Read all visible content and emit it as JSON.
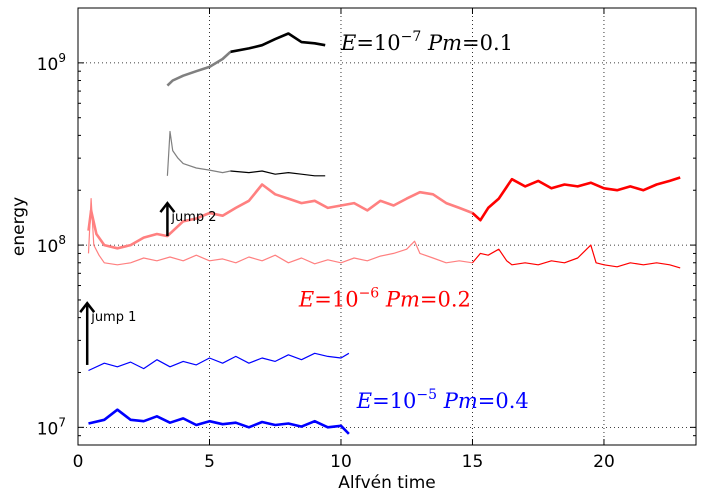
{
  "chart_data": {
    "type": "line",
    "title": "",
    "xlabel": "Alfvén time",
    "ylabel": "energy",
    "xlim": [
      0,
      23.5
    ],
    "ylim": [
      8000000,
      2000000000
    ],
    "yscale": "log",
    "grid": "dotted, at major ticks",
    "x_ticks": [
      0,
      5,
      10,
      15,
      20
    ],
    "x_tick_labels": [
      "0",
      "5",
      "10",
      "15",
      "20"
    ],
    "y_ticks": [
      10000000,
      100000000,
      1000000000
    ],
    "y_tick_labels": [
      {
        "base": "10",
        "exp": "7"
      },
      {
        "base": "10",
        "exp": "8"
      },
      {
        "base": "10",
        "exp": "9"
      }
    ],
    "annotations": [
      {
        "parts": [
          {
            "t": "E",
            "i": true
          },
          {
            "t": "=10",
            "i": false
          },
          {
            "t": "−7",
            "sup": true
          },
          {
            "t": "  Pm",
            "i": true
          },
          {
            "t": "=0.1",
            "i": false
          }
        ],
        "x": 10.0,
        "y": 1180000000,
        "color": "#000000"
      },
      {
        "parts": [
          {
            "t": "E",
            "i": true
          },
          {
            "t": "=10",
            "i": false
          },
          {
            "t": "−6",
            "sup": true
          },
          {
            "t": "  Pm",
            "i": true
          },
          {
            "t": "=0.2",
            "i": false
          }
        ],
        "x": 8.4,
        "y": 46000000,
        "color": "#ff0000"
      },
      {
        "parts": [
          {
            "t": "E",
            "i": true
          },
          {
            "t": "=10",
            "i": false
          },
          {
            "t": "−5",
            "sup": true
          },
          {
            "t": "  Pm",
            "i": true
          },
          {
            "t": "=0.4",
            "i": false
          }
        ],
        "x": 10.6,
        "y": 12800000,
        "color": "#0000ff"
      }
    ],
    "jumps": [
      {
        "label": "jump 2",
        "x": 3.4,
        "y_from": 112000000,
        "y_to": 170000000
      },
      {
        "label": "jump 1",
        "x": 0.35,
        "y_from": 22000000,
        "y_to": 48000000
      }
    ],
    "series": [
      {
        "style": "thick",
        "color": "#0000ff",
        "points": [
          [
            0.4,
            10500000
          ],
          [
            1.0,
            11000000
          ],
          [
            1.5,
            12500000
          ],
          [
            2.0,
            11000000
          ],
          [
            2.5,
            10800000
          ],
          [
            3.0,
            11500000
          ],
          [
            3.5,
            10600000
          ],
          [
            4.0,
            11200000
          ],
          [
            4.5,
            10300000
          ],
          [
            5.0,
            10800000
          ],
          [
            5.5,
            10400000
          ],
          [
            6.0,
            10600000
          ],
          [
            6.5,
            10000000
          ],
          [
            7.0,
            10700000
          ],
          [
            7.5,
            10300000
          ],
          [
            8.0,
            10500000
          ],
          [
            8.5,
            10100000
          ],
          [
            9.0,
            10800000
          ],
          [
            9.5,
            10000000
          ],
          [
            10.0,
            10200000
          ],
          [
            10.3,
            9200000
          ]
        ]
      },
      {
        "style": "thin",
        "color": "#0000ff",
        "points": [
          [
            0.4,
            20500000
          ],
          [
            1.0,
            22500000
          ],
          [
            1.5,
            21500000
          ],
          [
            2.0,
            22800000
          ],
          [
            2.5,
            21000000
          ],
          [
            3.0,
            23500000
          ],
          [
            3.5,
            21500000
          ],
          [
            4.0,
            23000000
          ],
          [
            4.5,
            22000000
          ],
          [
            5.0,
            24000000
          ],
          [
            5.5,
            22500000
          ],
          [
            6.0,
            24500000
          ],
          [
            6.5,
            22500000
          ],
          [
            7.0,
            24000000
          ],
          [
            7.5,
            23000000
          ],
          [
            8.0,
            25000000
          ],
          [
            8.5,
            23500000
          ],
          [
            9.0,
            25500000
          ],
          [
            9.5,
            24500000
          ],
          [
            10.0,
            24000000
          ],
          [
            10.3,
            25500000
          ]
        ]
      },
      {
        "style": "thick",
        "color": "#ff8080",
        "points": [
          [
            0.4,
            120000000
          ],
          [
            0.5,
            155000000
          ],
          [
            0.7,
            115000000
          ],
          [
            1.0,
            100000000
          ],
          [
            1.5,
            96000000
          ],
          [
            2.0,
            100000000
          ],
          [
            2.5,
            110000000
          ],
          [
            3.0,
            115000000
          ],
          [
            3.4,
            112000000
          ],
          [
            4.0,
            135000000
          ],
          [
            4.5,
            140000000
          ],
          [
            5.0,
            150000000
          ],
          [
            5.5,
            145000000
          ],
          [
            6.0,
            160000000
          ],
          [
            6.5,
            175000000
          ],
          [
            7.0,
            215000000
          ],
          [
            7.5,
            190000000
          ],
          [
            8.0,
            180000000
          ],
          [
            8.5,
            170000000
          ],
          [
            9.0,
            175000000
          ],
          [
            9.5,
            160000000
          ],
          [
            10.0,
            165000000
          ],
          [
            10.5,
            170000000
          ],
          [
            11.0,
            155000000
          ],
          [
            11.5,
            175000000
          ],
          [
            12.0,
            165000000
          ],
          [
            12.5,
            180000000
          ],
          [
            13.0,
            195000000
          ],
          [
            13.5,
            190000000
          ],
          [
            14.0,
            170000000
          ],
          [
            14.5,
            160000000
          ],
          [
            15.0,
            150000000
          ]
        ]
      },
      {
        "style": "thick",
        "color": "#ff0000",
        "points": [
          [
            15.0,
            150000000
          ],
          [
            15.3,
            137000000
          ],
          [
            15.6,
            160000000
          ],
          [
            16.0,
            180000000
          ],
          [
            16.5,
            230000000
          ],
          [
            17.0,
            210000000
          ],
          [
            17.5,
            225000000
          ],
          [
            18.0,
            205000000
          ],
          [
            18.5,
            215000000
          ],
          [
            19.0,
            210000000
          ],
          [
            19.5,
            220000000
          ],
          [
            20.0,
            205000000
          ],
          [
            20.5,
            200000000
          ],
          [
            21.0,
            210000000
          ],
          [
            21.5,
            200000000
          ],
          [
            22.0,
            215000000
          ],
          [
            22.5,
            225000000
          ],
          [
            22.9,
            235000000
          ]
        ]
      },
      {
        "style": "thin",
        "color": "#ff8080",
        "points": [
          [
            0.4,
            90000000
          ],
          [
            0.5,
            180000000
          ],
          [
            0.6,
            100000000
          ],
          [
            0.8,
            88000000
          ],
          [
            1.0,
            80000000
          ],
          [
            1.5,
            78000000
          ],
          [
            2.0,
            80000000
          ],
          [
            2.5,
            85000000
          ],
          [
            3.0,
            82000000
          ],
          [
            3.5,
            86000000
          ],
          [
            4.0,
            82000000
          ],
          [
            4.5,
            88000000
          ],
          [
            5.0,
            82000000
          ],
          [
            5.5,
            84000000
          ],
          [
            6.0,
            80000000
          ],
          [
            6.5,
            86000000
          ],
          [
            7.0,
            82000000
          ],
          [
            7.5,
            88000000
          ],
          [
            8.0,
            80000000
          ],
          [
            8.5,
            85000000
          ],
          [
            9.0,
            79000000
          ],
          [
            9.5,
            83000000
          ],
          [
            10.0,
            80000000
          ],
          [
            10.5,
            85000000
          ],
          [
            11.0,
            82000000
          ],
          [
            11.5,
            87000000
          ],
          [
            12.0,
            90000000
          ],
          [
            12.5,
            95000000
          ],
          [
            12.8,
            105000000
          ],
          [
            13.0,
            90000000
          ],
          [
            13.5,
            85000000
          ],
          [
            14.0,
            80000000
          ],
          [
            14.5,
            82000000
          ],
          [
            15.0,
            80000000
          ]
        ]
      },
      {
        "style": "thin",
        "color": "#ff0000",
        "points": [
          [
            15.0,
            80000000
          ],
          [
            15.3,
            90000000
          ],
          [
            15.6,
            88000000
          ],
          [
            16.0,
            95000000
          ],
          [
            16.3,
            82000000
          ],
          [
            16.5,
            78000000
          ],
          [
            17.0,
            80000000
          ],
          [
            17.5,
            78000000
          ],
          [
            18.0,
            82000000
          ],
          [
            18.5,
            80000000
          ],
          [
            19.0,
            85000000
          ],
          [
            19.5,
            100000000
          ],
          [
            19.7,
            80000000
          ],
          [
            20.0,
            78000000
          ],
          [
            20.5,
            76000000
          ],
          [
            21.0,
            80000000
          ],
          [
            21.5,
            78000000
          ],
          [
            22.0,
            80000000
          ],
          [
            22.5,
            78000000
          ],
          [
            22.9,
            75000000
          ]
        ]
      },
      {
        "style": "thick",
        "color": "#808080",
        "points": [
          [
            3.4,
            750000000
          ],
          [
            3.6,
            800000000
          ],
          [
            4.0,
            850000000
          ],
          [
            4.5,
            900000000
          ],
          [
            5.0,
            950000000
          ],
          [
            5.5,
            1050000000
          ],
          [
            5.8,
            1150000000
          ]
        ]
      },
      {
        "style": "thick",
        "color": "#000000",
        "points": [
          [
            5.8,
            1150000000
          ],
          [
            6.5,
            1200000000
          ],
          [
            7.0,
            1250000000
          ],
          [
            7.5,
            1350000000
          ],
          [
            8.0,
            1450000000
          ],
          [
            8.5,
            1300000000
          ],
          [
            9.0,
            1280000000
          ],
          [
            9.4,
            1250000000
          ]
        ]
      },
      {
        "style": "thin",
        "color": "#808080",
        "points": [
          [
            3.4,
            240000000
          ],
          [
            3.5,
            420000000
          ],
          [
            3.6,
            330000000
          ],
          [
            3.8,
            300000000
          ],
          [
            4.0,
            280000000
          ],
          [
            4.5,
            265000000
          ],
          [
            5.0,
            258000000
          ],
          [
            5.5,
            250000000
          ],
          [
            5.8,
            255000000
          ]
        ]
      },
      {
        "style": "thin",
        "color": "#000000",
        "points": [
          [
            5.8,
            255000000
          ],
          [
            6.5,
            250000000
          ],
          [
            7.0,
            255000000
          ],
          [
            7.5,
            245000000
          ],
          [
            8.0,
            250000000
          ],
          [
            8.5,
            245000000
          ],
          [
            9.0,
            240000000
          ],
          [
            9.4,
            240000000
          ]
        ]
      }
    ]
  }
}
